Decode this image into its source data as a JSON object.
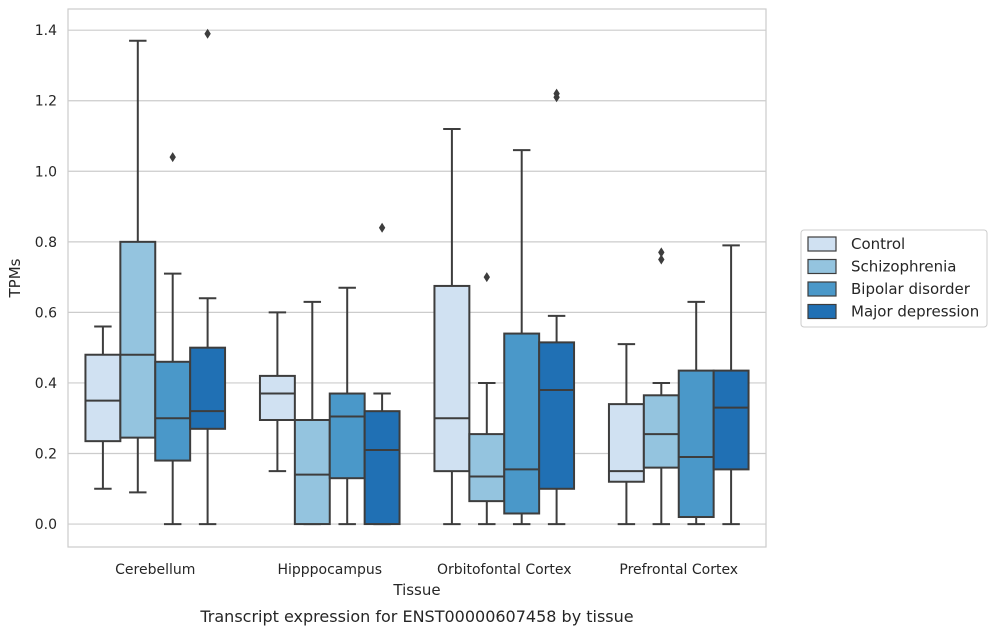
{
  "chart_data": {
    "type": "box",
    "title": "Transcript expression for ENST00000607458 by tissue",
    "xlabel": "Tissue",
    "ylabel": "TPMs",
    "ylim": [
      -0.065,
      1.46
    ],
    "yticks": [
      0.0,
      0.2,
      0.4,
      0.6,
      0.8,
      1.0,
      1.2,
      1.4
    ],
    "ytick_labels": [
      "0.0",
      "0.2",
      "0.4",
      "0.6",
      "0.8",
      "1.0",
      "1.2",
      "1.4"
    ],
    "categories": [
      "Cerebellum",
      "Hipppocampus",
      "Orbitofontal Cortex",
      "Prefrontal Cortex"
    ],
    "grid": true,
    "legend_position": "right",
    "series": [
      {
        "name": "Control",
        "color": "#d0e1f2",
        "boxes": [
          {
            "whislo": 0.1,
            "q1": 0.235,
            "med": 0.35,
            "q3": 0.48,
            "whishi": 0.56,
            "fliers": []
          },
          {
            "whislo": 0.15,
            "q1": 0.295,
            "med": 0.37,
            "q3": 0.42,
            "whishi": 0.6,
            "fliers": []
          },
          {
            "whislo": 0.0,
            "q1": 0.15,
            "med": 0.3,
            "q3": 0.675,
            "whishi": 1.12,
            "fliers": []
          },
          {
            "whislo": 0.0,
            "q1": 0.12,
            "med": 0.15,
            "q3": 0.34,
            "whishi": 0.51,
            "fliers": []
          }
        ]
      },
      {
        "name": "Schizophrenia",
        "color": "#94c4df",
        "boxes": [
          {
            "whislo": 0.09,
            "q1": 0.245,
            "med": 0.48,
            "q3": 0.8,
            "whishi": 1.37,
            "fliers": []
          },
          {
            "whislo": 0.0,
            "q1": 0.0,
            "med": 0.14,
            "q3": 0.295,
            "whishi": 0.63,
            "fliers": []
          },
          {
            "whislo": 0.0,
            "q1": 0.065,
            "med": 0.135,
            "q3": 0.255,
            "whishi": 0.4,
            "fliers": [
              0.7
            ]
          },
          {
            "whislo": 0.0,
            "q1": 0.16,
            "med": 0.255,
            "q3": 0.365,
            "whishi": 0.4,
            "fliers": [
              0.75,
              0.77
            ]
          }
        ]
      },
      {
        "name": "Bipolar disorder",
        "color": "#4a98c9",
        "boxes": [
          {
            "whislo": 0.0,
            "q1": 0.18,
            "med": 0.3,
            "q3": 0.46,
            "whishi": 0.71,
            "fliers": [
              1.04
            ]
          },
          {
            "whislo": 0.0,
            "q1": 0.13,
            "med": 0.305,
            "q3": 0.37,
            "whishi": 0.67,
            "fliers": []
          },
          {
            "whislo": 0.0,
            "q1": 0.03,
            "med": 0.155,
            "q3": 0.54,
            "whishi": 1.06,
            "fliers": []
          },
          {
            "whislo": 0.0,
            "q1": 0.02,
            "med": 0.19,
            "q3": 0.435,
            "whishi": 0.63,
            "fliers": []
          }
        ]
      },
      {
        "name": "Major depression",
        "color": "#2070b4",
        "boxes": [
          {
            "whislo": 0.0,
            "q1": 0.27,
            "med": 0.32,
            "q3": 0.5,
            "whishi": 0.64,
            "fliers": [
              1.39
            ]
          },
          {
            "whislo": 0.0,
            "q1": 0.0,
            "med": 0.21,
            "q3": 0.32,
            "whishi": 0.37,
            "fliers": [
              0.84
            ]
          },
          {
            "whislo": 0.0,
            "q1": 0.1,
            "med": 0.38,
            "q3": 0.515,
            "whishi": 0.59,
            "fliers": [
              1.21,
              1.22
            ]
          },
          {
            "whislo": 0.0,
            "q1": 0.155,
            "med": 0.33,
            "q3": 0.435,
            "whishi": 0.79,
            "fliers": []
          }
        ]
      }
    ]
  },
  "colors": {
    "grid": "#cccccc",
    "frame": "#cccccc",
    "line": "#3d3d3d"
  }
}
